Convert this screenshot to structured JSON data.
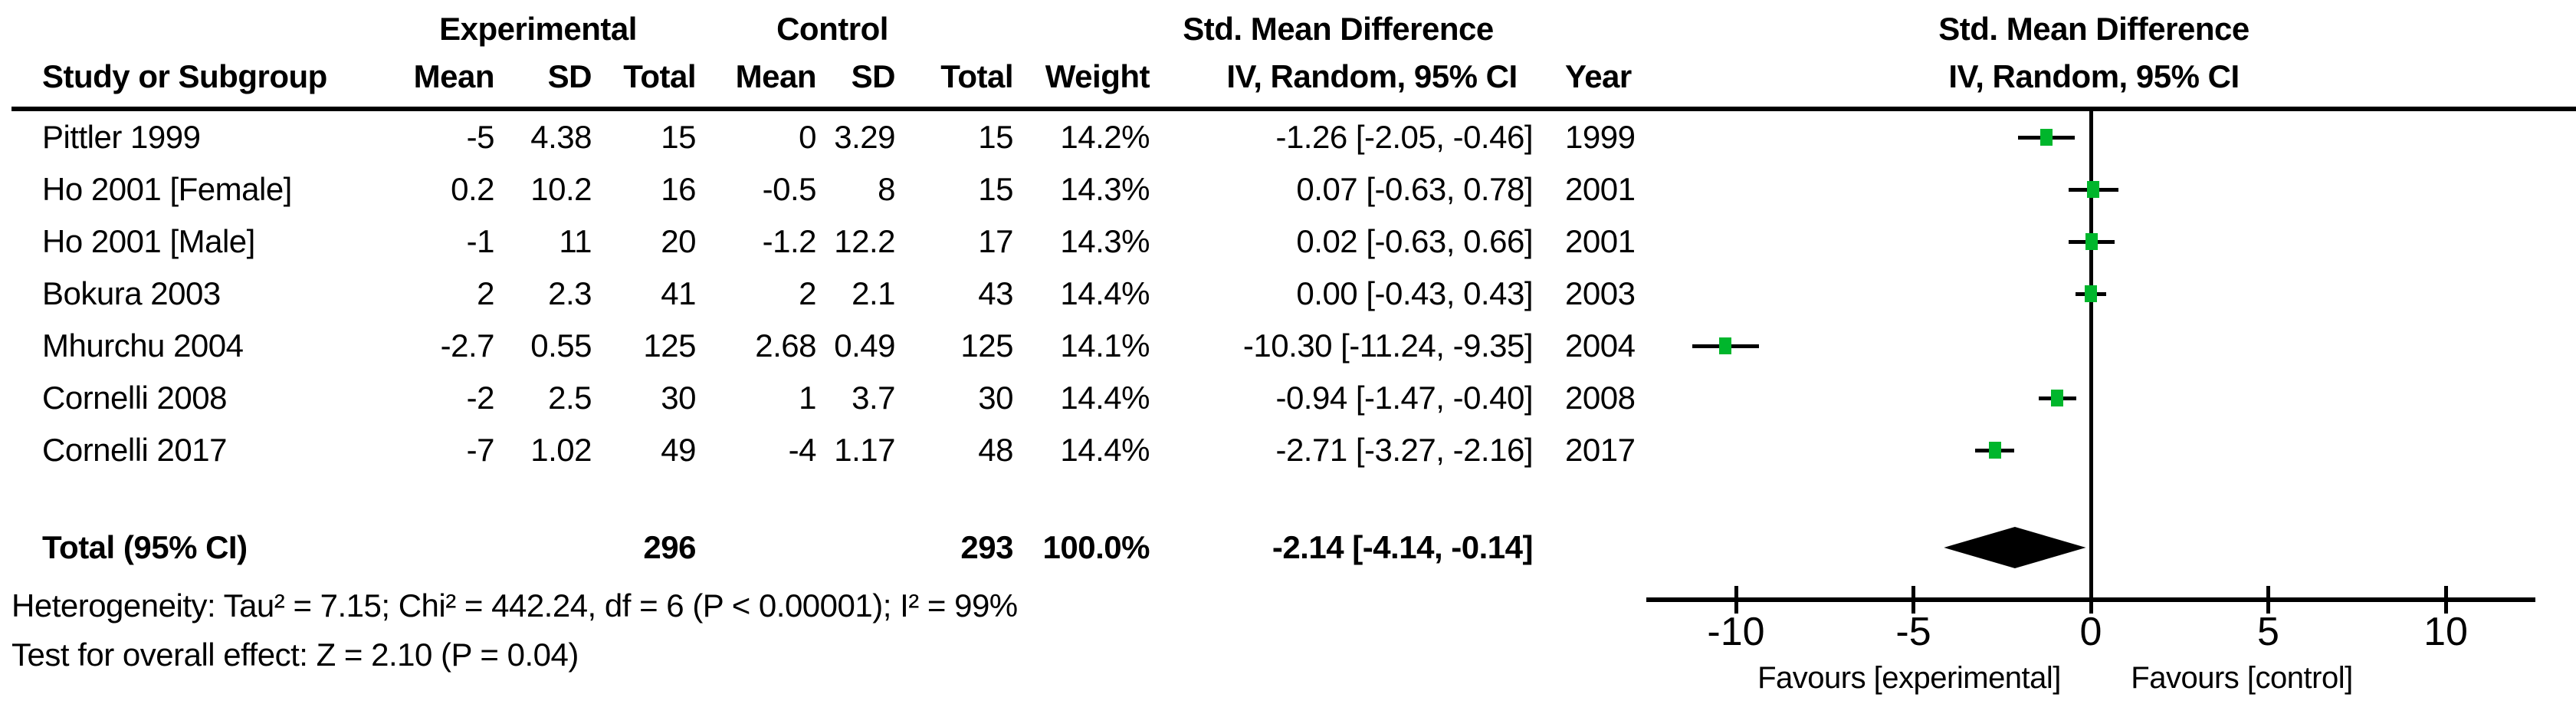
{
  "colors": {
    "marker": "#00b62c",
    "line": "#000000",
    "diamond": "#000000",
    "background": "#ffffff",
    "text": "#000000"
  },
  "header": {
    "group_experimental": "Experimental",
    "group_control": "Control",
    "effect_title": "Std. Mean Difference",
    "effect_subtitle": "IV, Random, 95% CI",
    "plot_effect_title": "Std. Mean Difference",
    "plot_effect_subtitle": "IV, Random, 95% CI",
    "col_study": "Study or Subgroup",
    "col_exp_mean": "Mean",
    "col_exp_sd": "SD",
    "col_exp_total": "Total",
    "col_ctrl_mean": "Mean",
    "col_ctrl_sd": "SD",
    "col_ctrl_total": "Total",
    "col_weight": "Weight",
    "col_year": "Year"
  },
  "chart_data": {
    "type": "forest",
    "effect_measure": "Std. Mean Difference",
    "method": "IV, Random, 95% CI",
    "studies": [
      {
        "name": "Pittler 1999",
        "exp_mean": "-5",
        "exp_sd": "4.38",
        "exp_total": "15",
        "ctrl_mean": "0",
        "ctrl_sd": "3.29",
        "ctrl_total": "15",
        "weight": "14.2%",
        "smd": -1.26,
        "ci_low": -2.05,
        "ci_high": -0.46,
        "ci_text": "-1.26 [-2.05, -0.46]",
        "year": "1999"
      },
      {
        "name": "Ho 2001 [Female]",
        "exp_mean": "0.2",
        "exp_sd": "10.2",
        "exp_total": "16",
        "ctrl_mean": "-0.5",
        "ctrl_sd": "8",
        "ctrl_total": "15",
        "weight": "14.3%",
        "smd": 0.07,
        "ci_low": -0.63,
        "ci_high": 0.78,
        "ci_text": "0.07 [-0.63, 0.78]",
        "year": "2001"
      },
      {
        "name": "Ho 2001 [Male]",
        "exp_mean": "-1",
        "exp_sd": "11",
        "exp_total": "20",
        "ctrl_mean": "-1.2",
        "ctrl_sd": "12.2",
        "ctrl_total": "17",
        "weight": "14.3%",
        "smd": 0.02,
        "ci_low": -0.63,
        "ci_high": 0.66,
        "ci_text": "0.02 [-0.63, 0.66]",
        "year": "2001"
      },
      {
        "name": "Bokura 2003",
        "exp_mean": "2",
        "exp_sd": "2.3",
        "exp_total": "41",
        "ctrl_mean": "2",
        "ctrl_sd": "2.1",
        "ctrl_total": "43",
        "weight": "14.4%",
        "smd": 0.0,
        "ci_low": -0.43,
        "ci_high": 0.43,
        "ci_text": "0.00 [-0.43, 0.43]",
        "year": "2003"
      },
      {
        "name": "Mhurchu 2004",
        "exp_mean": "-2.7",
        "exp_sd": "0.55",
        "exp_total": "125",
        "ctrl_mean": "2.68",
        "ctrl_sd": "0.49",
        "ctrl_total": "125",
        "weight": "14.1%",
        "smd": -10.3,
        "ci_low": -11.24,
        "ci_high": -9.35,
        "ci_text": "-10.30 [-11.24, -9.35]",
        "year": "2004"
      },
      {
        "name": "Cornelli 2008",
        "exp_mean": "-2",
        "exp_sd": "2.5",
        "exp_total": "30",
        "ctrl_mean": "1",
        "ctrl_sd": "3.7",
        "ctrl_total": "30",
        "weight": "14.4%",
        "smd": -0.94,
        "ci_low": -1.47,
        "ci_high": -0.4,
        "ci_text": "-0.94 [-1.47, -0.40]",
        "year": "2008"
      },
      {
        "name": "Cornelli 2017",
        "exp_mean": "-7",
        "exp_sd": "1.02",
        "exp_total": "49",
        "ctrl_mean": "-4",
        "ctrl_sd": "1.17",
        "ctrl_total": "48",
        "weight": "14.4%",
        "smd": -2.71,
        "ci_low": -3.27,
        "ci_high": -2.16,
        "ci_text": "-2.71 [-3.27, -2.16]",
        "year": "2017"
      }
    ],
    "total": {
      "label": "Total (95% CI)",
      "exp_total": "296",
      "ctrl_total": "293",
      "weight": "100.0%",
      "smd": -2.14,
      "ci_low": -4.14,
      "ci_high": -0.14,
      "ci_text": "-2.14 [-4.14, -0.14]"
    },
    "heterogeneity": "Heterogeneity: Tau² = 7.15; Chi² = 442.24, df = 6 (P < 0.00001); I² = 99%",
    "overall_effect": "Test for overall effect: Z = 2.10 (P = 0.04)",
    "axis": {
      "ticks": [
        -10,
        -5,
        0,
        5,
        10
      ],
      "min": -12.5,
      "max": 12.5,
      "favours_left": "Favours [experimental]",
      "favours_right": "Favours [control]"
    }
  }
}
